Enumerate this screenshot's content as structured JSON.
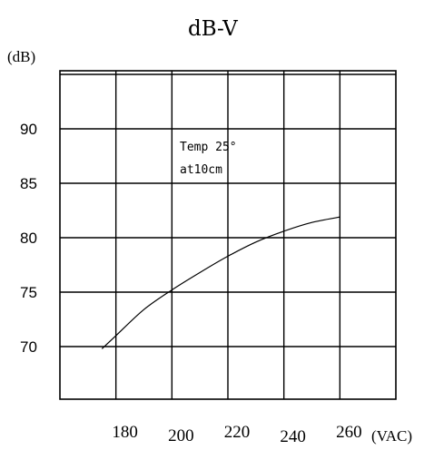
{
  "chart_data": {
    "type": "line",
    "title": "dB-V",
    "ylabel": "(dB)",
    "xlabel": "(VAC)",
    "x_ticks": [
      "180",
      "200",
      "220",
      "240",
      "260"
    ],
    "y_ticks": [
      "70",
      "75",
      "80",
      "85",
      "90"
    ],
    "annotation": [
      "Temp 25°",
      "at10cm"
    ],
    "grid": true,
    "x": [
      175,
      180,
      190,
      200,
      210,
      220,
      230,
      240,
      250,
      260
    ],
    "y": [
      69.8,
      71.0,
      73.4,
      75.2,
      76.8,
      78.3,
      79.6,
      80.6,
      81.4,
      81.9
    ]
  }
}
